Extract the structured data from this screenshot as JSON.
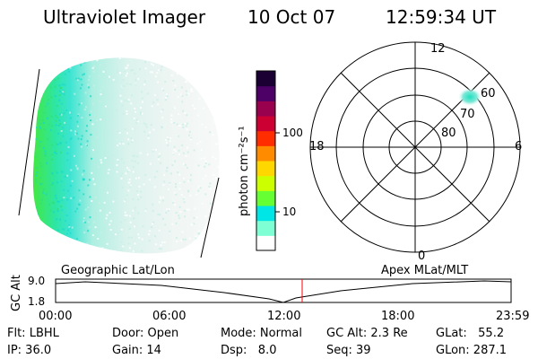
{
  "header": {
    "title": "Ultraviolet Imager",
    "date": "10 Oct 07",
    "time": "12:59:34 UT"
  },
  "colorbar": {
    "unit_label": "photon cm⁻²s⁻¹",
    "ticks": [
      {
        "value": 100,
        "label": "100"
      },
      {
        "value": 10,
        "label": "10"
      }
    ],
    "scale": "log",
    "colors": [
      "#ffffff",
      "#7fffd4",
      "#00e5e5",
      "#66ff33",
      "#ccff00",
      "#ffd700",
      "#ff8c00",
      "#ff2d00",
      "#cc0033",
      "#99004d",
      "#4d0066",
      "#1a0033"
    ]
  },
  "polar_plot": {
    "mlt_labels": {
      "top": "12",
      "bottom": "0",
      "left": "18",
      "right": "6"
    },
    "lat_labels": [
      "60",
      "70",
      "80"
    ]
  },
  "timeline": {
    "left_title": "Geographic Lat/Lon",
    "right_title": "Apex MLat/MLT",
    "axis_title": "GC Alt",
    "y_ticks": [
      "9.0",
      "1.8"
    ],
    "x_ticks": [
      "00:00",
      "06:00",
      "12:00",
      "18:00",
      "23:59"
    ],
    "current_time": "12:59:34",
    "marker_color": "#ff0000"
  },
  "info": {
    "flt": "Flt: LBHL",
    "ip": "IP: 36.0",
    "door": "Door: Open",
    "gain": "Gain: 14",
    "mode": "Mode: Normal",
    "dsp": "Dsp:   8.0",
    "gc_alt": "GC Alt: 2.3 Re",
    "seq": "Seq: 39",
    "glat": "GLat:   55.2",
    "glon": "GLon: 287.1"
  }
}
